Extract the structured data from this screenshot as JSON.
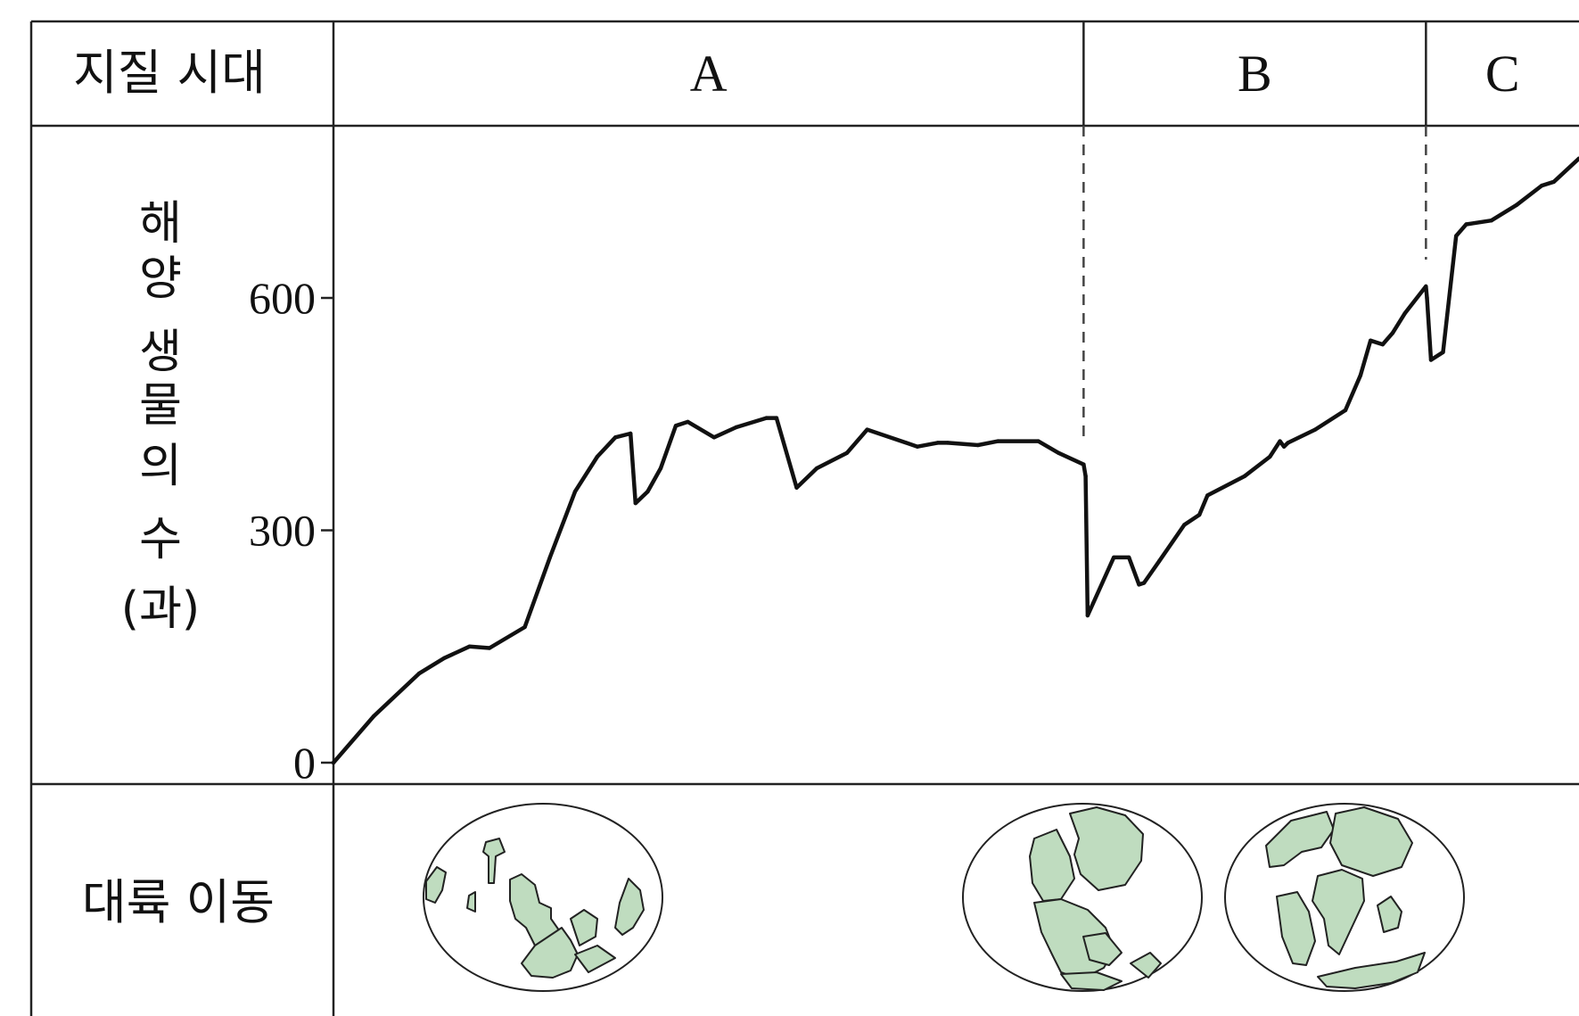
{
  "chart_data": {
    "type": "line",
    "header_label": "지질 시대",
    "bottom_label": "대륙 이동",
    "ylabel_lines": [
      "해",
      "양",
      "생",
      "물",
      "의",
      "수",
      "(과)"
    ],
    "eras": [
      {
        "name": "A",
        "start": 0,
        "end": 745
      },
      {
        "name": "B",
        "start": 745,
        "end": 1085
      },
      {
        "name": "C",
        "start": 1085,
        "end": 1237
      }
    ],
    "yticks": [
      0,
      300,
      600
    ],
    "ylim": [
      0,
      830
    ],
    "xlim": [
      0,
      1237
    ],
    "series": [
      {
        "x": [
          0,
          40,
          85,
          110,
          135,
          155,
          190,
          215,
          240,
          262,
          280,
          295,
          300,
          312,
          325,
          340,
          352,
          378,
          400,
          430,
          440,
          460,
          480,
          510,
          530,
          580,
          600,
          610,
          640,
          660,
          700,
          720,
          745,
          747,
          749,
          775,
          790,
          800,
          805,
          820,
          845,
          860,
          868,
          905,
          930,
          940,
          944,
          948,
          975,
          1005,
          1020,
          1030,
          1042,
          1052,
          1064,
          1085,
          1086,
          1090,
          1102,
          1115,
          1125,
          1150,
          1175,
          1200,
          1212,
          1237
        ],
        "y": [
          0,
          60,
          115,
          135,
          150,
          148,
          175,
          265,
          350,
          395,
          420,
          425,
          335,
          350,
          380,
          435,
          440,
          420,
          433,
          445,
          445,
          355,
          380,
          400,
          430,
          408,
          413,
          413,
          410,
          415,
          415,
          400,
          385,
          370,
          190,
          265,
          265,
          230,
          232,
          260,
          307,
          320,
          345,
          370,
          395,
          415,
          408,
          413,
          430,
          455,
          500,
          545,
          540,
          555,
          580,
          615,
          600,
          520,
          530,
          680,
          695,
          700,
          720,
          745,
          750,
          780
        ]
      }
    ],
    "dividers_at": [
      745,
      1085
    ],
    "grid": false,
    "maps": [
      {
        "name": "map-A"
      },
      {
        "name": "map-B"
      },
      {
        "name": "map-C"
      }
    ]
  }
}
